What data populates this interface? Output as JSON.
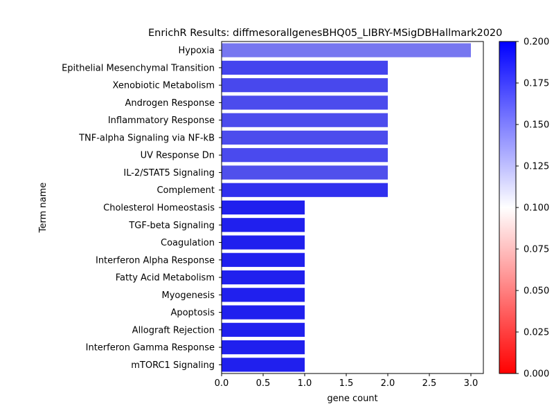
{
  "chart_data": {
    "type": "bar",
    "orientation": "horizontal",
    "title": "EnrichR Results: diffmesorallgenesBHQ05_LIBRY-MSigDBHallmark2020",
    "xlabel": "gene count",
    "ylabel": "Term name",
    "xlim": [
      0,
      3.15
    ],
    "xticks": [
      "0.0",
      "0.5",
      "1.0",
      "1.5",
      "2.0",
      "2.5",
      "3.0"
    ],
    "grid": false,
    "categories": [
      "Hypoxia",
      "Epithelial Mesenchymal Transition",
      "Xenobiotic Metabolism",
      "Androgen Response",
      "Inflammatory Response",
      "TNF-alpha Signaling via NF-kB",
      "UV Response Dn",
      "IL-2/STAT5 Signaling",
      "Complement",
      "Cholesterol Homeostasis",
      "TGF-beta Signaling",
      "Coagulation",
      "Interferon Alpha Response",
      "Fatty Acid Metabolism",
      "Myogenesis",
      "Apoptosis",
      "Allograft Rejection",
      "Interferon Gamma Response",
      "mTORC1 Signaling"
    ],
    "values": [
      3,
      2,
      2,
      2,
      2,
      2,
      2,
      2,
      2,
      1,
      1,
      1,
      1,
      1,
      1,
      1,
      1,
      1,
      1
    ],
    "bar_colors": [
      "#7777f0",
      "#4444ee",
      "#4848ed",
      "#4c4ced",
      "#4c4ced",
      "#4c4ced",
      "#4a4aee",
      "#5050ec",
      "#3030ee",
      "#2020ee",
      "#2020ee",
      "#2020ee",
      "#2020ee",
      "#2020ee",
      "#2020ee",
      "#2020ee",
      "#2020ee",
      "#2020ee",
      "#2020ee"
    ],
    "colorbar": {
      "range": [
        0.0,
        0.2
      ],
      "ticks": [
        "0.000",
        "0.025",
        "0.050",
        "0.075",
        "0.100",
        "0.125",
        "0.150",
        "0.175",
        "0.200"
      ],
      "colormap": [
        "#ff0000",
        "#ffffff",
        "#0000ff"
      ]
    }
  }
}
